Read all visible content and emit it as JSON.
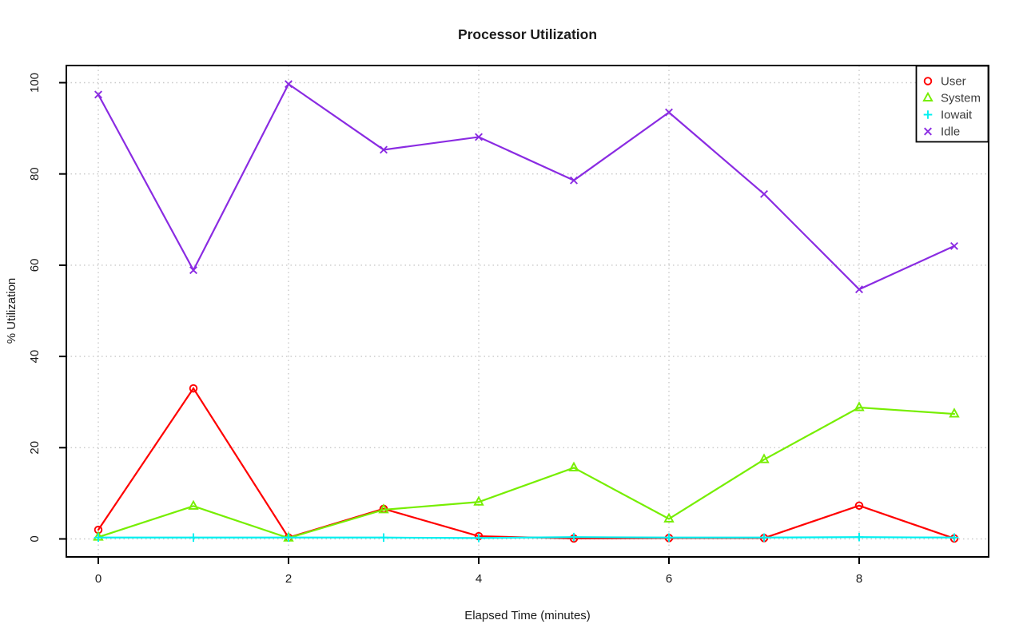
{
  "chart_data": {
    "type": "line",
    "title": "Processor Utilization",
    "xlabel": "Elapsed Time (minutes)",
    "ylabel": "% Utilization",
    "x": [
      0,
      1,
      2,
      3,
      4,
      5,
      6,
      7,
      8,
      9
    ],
    "x_ticks": [
      0,
      2,
      4,
      6,
      8
    ],
    "y_ticks": [
      0,
      20,
      40,
      60,
      80,
      100
    ],
    "xlim": [
      -0.35,
      9.36
    ],
    "ylim": [
      -4,
      104
    ],
    "grid": "dotted",
    "grid_color": "#c9c9c9",
    "frame_color": "#000000",
    "legend_position": "top-right",
    "series": [
      {
        "name": "User",
        "color": "#ff0000",
        "marker": "circle",
        "values": [
          2.0,
          33.0,
          0.3,
          6.6,
          0.6,
          0.1,
          0.2,
          0.2,
          7.3,
          0.1
        ]
      },
      {
        "name": "System",
        "color": "#76ee00",
        "marker": "triangle",
        "values": [
          0.4,
          7.2,
          0.2,
          6.4,
          8.1,
          15.6,
          4.4,
          17.4,
          28.8,
          27.4
        ]
      },
      {
        "name": "Iowait",
        "color": "#00f0f0",
        "marker": "plus",
        "values": [
          0.3,
          0.3,
          0.3,
          0.3,
          0.2,
          0.4,
          0.3,
          0.3,
          0.4,
          0.3
        ]
      },
      {
        "name": "Idle",
        "color": "#8a2be2",
        "marker": "x",
        "values": [
          97.4,
          58.9,
          99.7,
          85.3,
          88.1,
          78.6,
          93.5,
          75.6,
          54.7,
          64.2
        ]
      }
    ]
  }
}
